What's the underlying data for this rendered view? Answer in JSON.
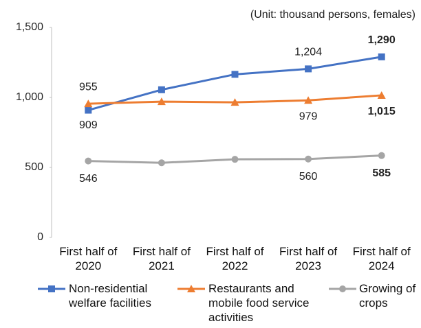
{
  "chart_data": {
    "type": "line",
    "subtitle": "(Unit: thousand persons, females)",
    "categories": [
      "First half of 2020",
      "First half of 2021",
      "First half of 2022",
      "First half of 2023",
      "First half of 2024"
    ],
    "series": [
      {
        "name": "Non-residential welfare facilities",
        "color": "#4472c4",
        "values": [
          909,
          1055,
          1165,
          1204,
          1290
        ],
        "value_labels": [
          "909",
          null,
          null,
          "1,204",
          "1,290"
        ]
      },
      {
        "name": "Restaurants and mobile food service activities",
        "color": "#ed7d31",
        "values": [
          955,
          970,
          965,
          979,
          1015
        ],
        "value_labels": [
          "955",
          null,
          null,
          "979",
          "1,015"
        ]
      },
      {
        "name": "Growing of crops",
        "color": "#a5a5a5",
        "values": [
          546,
          533,
          558,
          560,
          585
        ],
        "value_labels": [
          "546",
          null,
          null,
          "560",
          "585"
        ]
      }
    ],
    "ylim": [
      0,
      1500
    ],
    "yticks": [
      0,
      500,
      {
        "value": 1000,
        "label": "1,000"
      },
      {
        "value": 1500,
        "label": "1,500"
      }
    ],
    "legend": "bottom"
  }
}
